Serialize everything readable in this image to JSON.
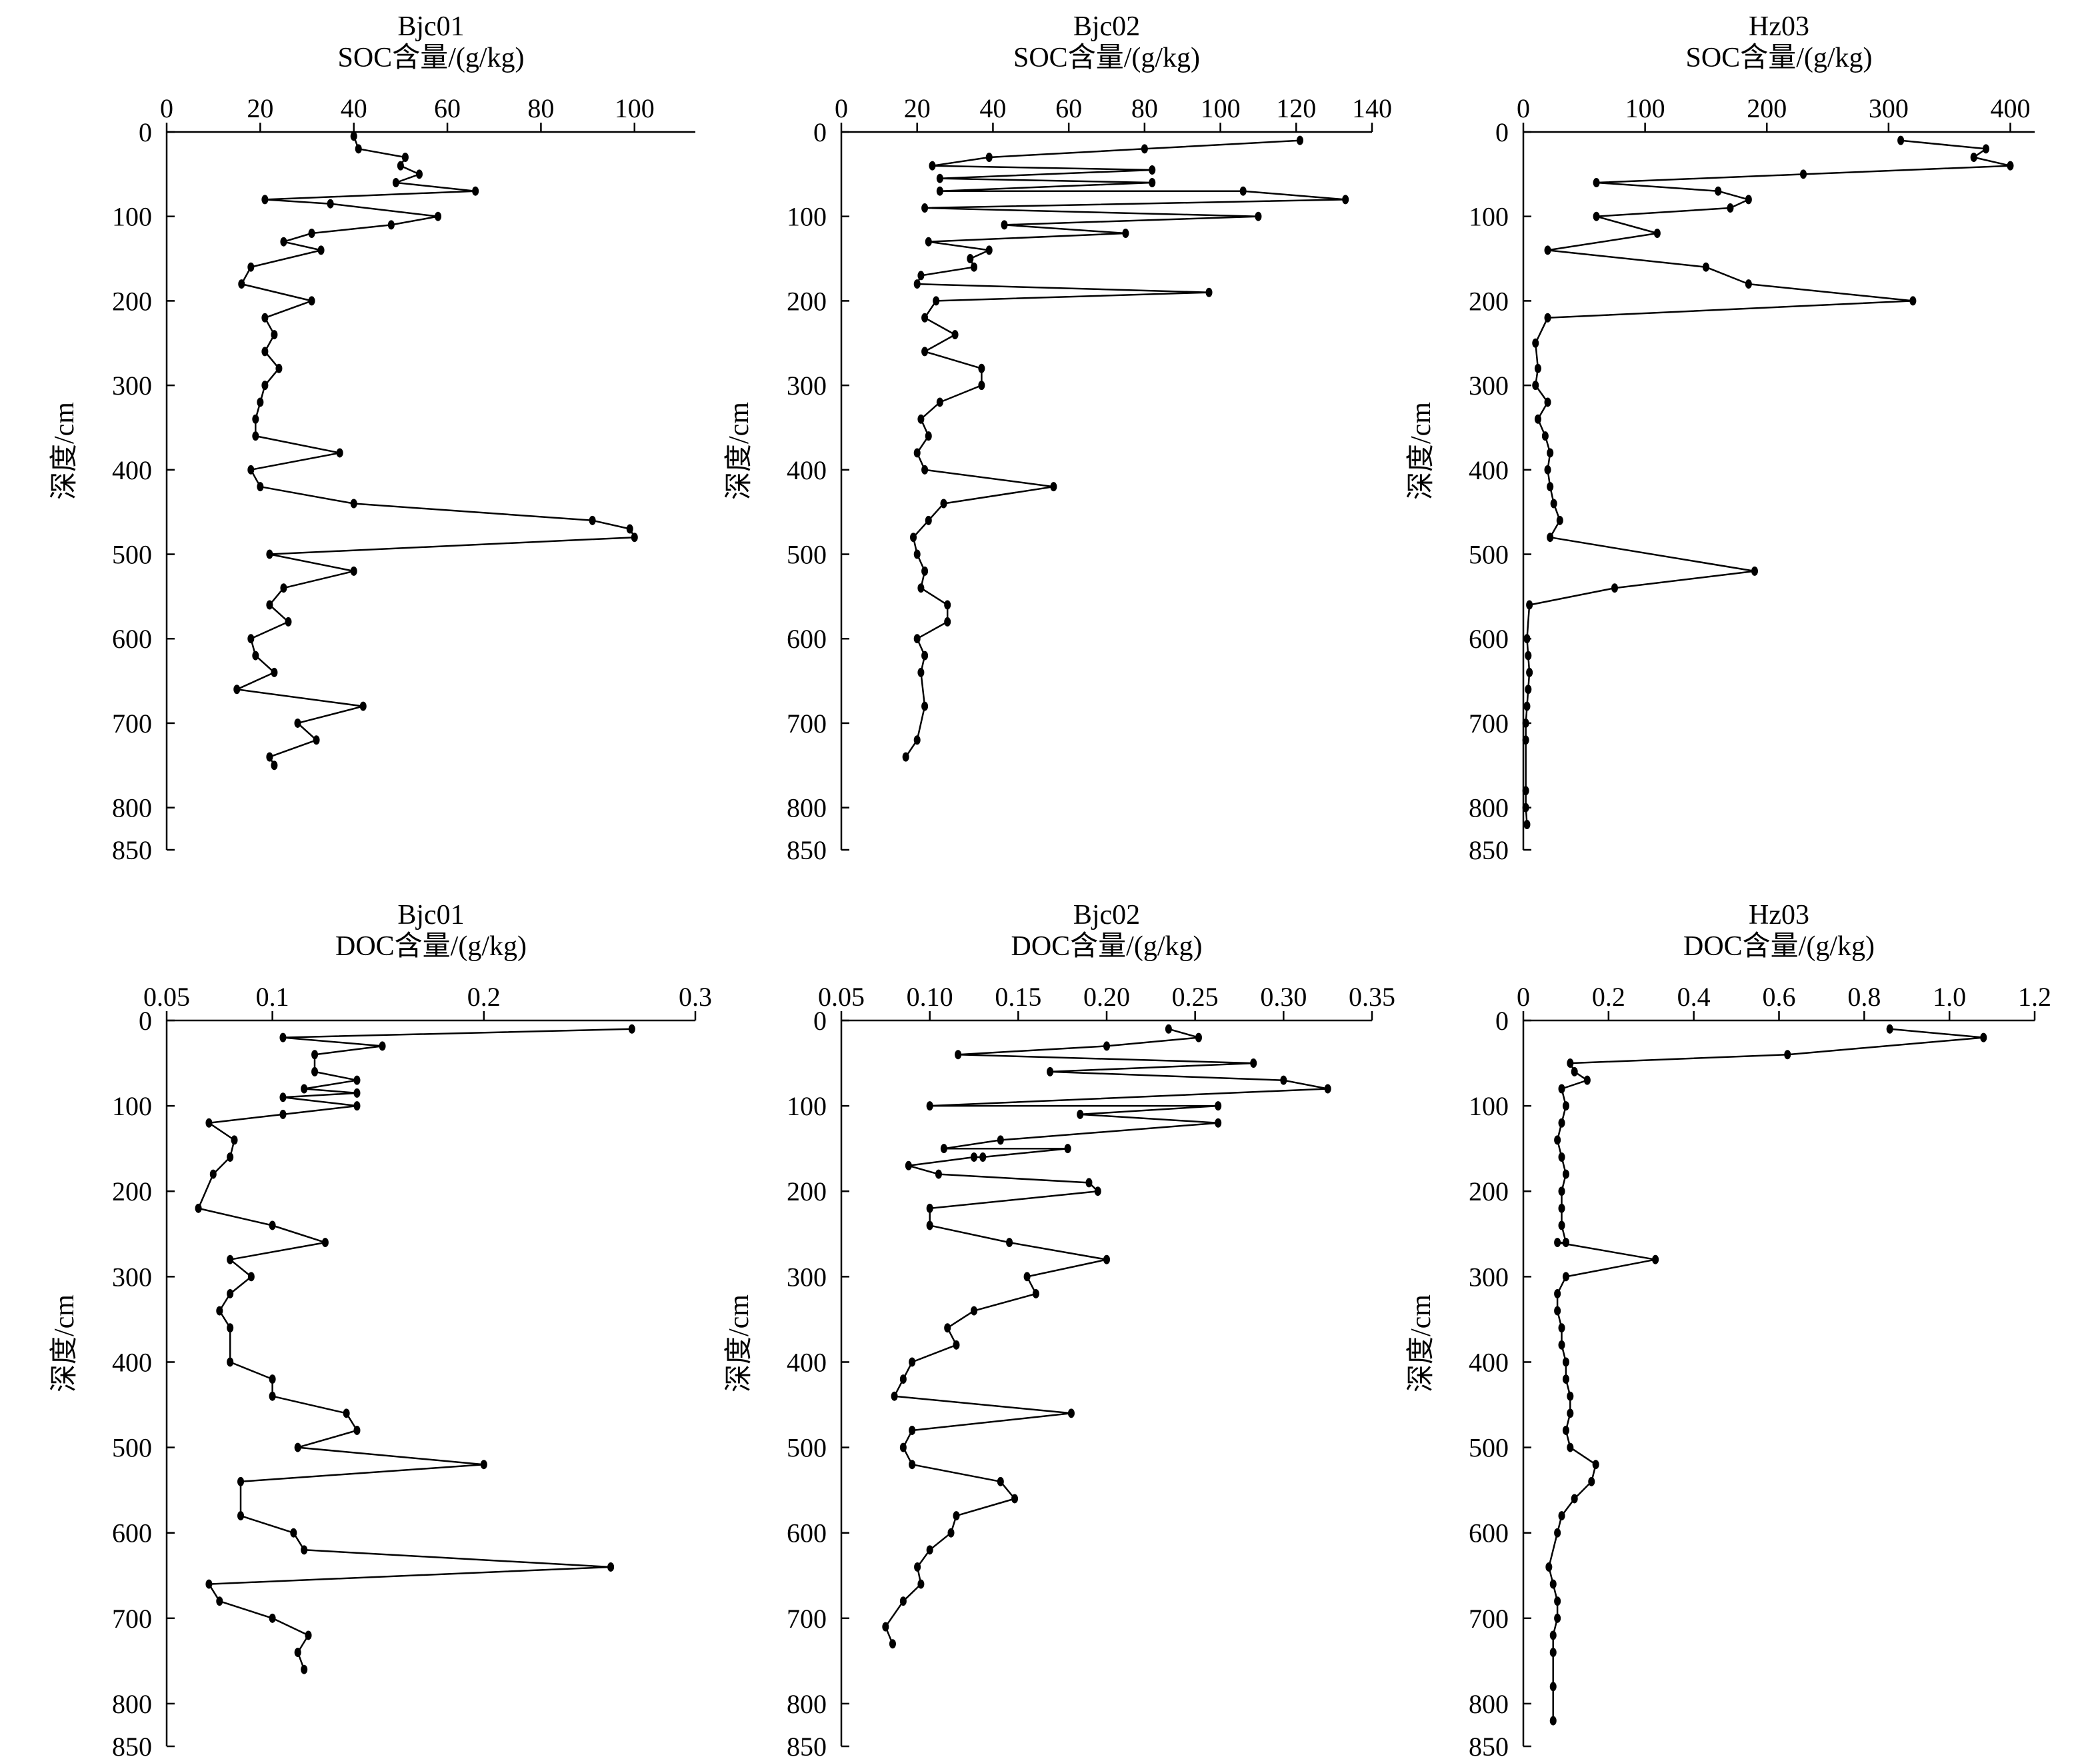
{
  "chart_data": [
    {
      "type": "line",
      "title": "Bjc01",
      "xlabel": "SOC含量/(g/kg)",
      "ylabel": "深度/cm",
      "xlim": [
        0,
        113
      ],
      "ylim": [
        850,
        0
      ],
      "x_ticks": [
        0,
        20,
        40,
        60,
        80,
        100
      ],
      "x_tick_labels": [
        "0",
        "20",
        "40",
        "60",
        "80",
        "100"
      ],
      "y_ticks": [
        0,
        100,
        200,
        300,
        400,
        500,
        600,
        700,
        800,
        850
      ],
      "y_tick_labels": [
        "0",
        "100",
        "200",
        "300",
        "400",
        "500",
        "600",
        "700",
        "800",
        "850"
      ],
      "grid": false,
      "series": [
        {
          "x": [
            40,
            41,
            51,
            50,
            54,
            49,
            66,
            21,
            35,
            58,
            48,
            31,
            25,
            33,
            18,
            16,
            31,
            21,
            23,
            21,
            24,
            21,
            20,
            19,
            19,
            37,
            18,
            20,
            40,
            91,
            99,
            100,
            22,
            40,
            25,
            22,
            26,
            18,
            19,
            23,
            15,
            42,
            28,
            32,
            22,
            23
          ],
          "y": [
            5,
            20,
            30,
            40,
            50,
            60,
            70,
            80,
            85,
            100,
            110,
            120,
            130,
            140,
            160,
            180,
            200,
            220,
            240,
            260,
            280,
            300,
            320,
            340,
            360,
            380,
            400,
            420,
            440,
            460,
            470,
            480,
            500,
            520,
            540,
            560,
            580,
            600,
            620,
            640,
            660,
            680,
            700,
            720,
            740,
            750
          ]
        }
      ]
    },
    {
      "type": "line",
      "title": "Bjc02",
      "xlabel": "SOC含量/(g/kg)",
      "ylabel": "深度/cm",
      "xlim": [
        0,
        140
      ],
      "ylim": [
        850,
        0
      ],
      "x_ticks": [
        0,
        20,
        40,
        60,
        80,
        100,
        120,
        140
      ],
      "x_tick_labels": [
        "0",
        "20",
        "40",
        "60",
        "80",
        "100",
        "120",
        "140"
      ],
      "y_ticks": [
        0,
        100,
        200,
        300,
        400,
        500,
        600,
        700,
        800,
        850
      ],
      "y_tick_labels": [
        "0",
        "100",
        "200",
        "300",
        "400",
        "500",
        "600",
        "700",
        "800",
        "850"
      ],
      "grid": false,
      "series": [
        {
          "x": [
            121,
            80,
            39,
            24,
            82,
            26,
            82,
            26,
            106,
            133,
            22,
            110,
            43,
            75,
            23,
            39,
            34,
            35,
            21,
            20,
            97,
            25,
            22,
            30,
            22,
            37,
            37,
            26,
            21,
            23,
            20,
            22,
            56,
            27,
            23,
            19,
            20,
            22,
            21,
            28,
            28,
            20,
            22,
            21,
            22,
            20,
            17
          ],
          "y": [
            10,
            20,
            30,
            40,
            45,
            55,
            60,
            70,
            70,
            80,
            90,
            100,
            110,
            120,
            130,
            140,
            150,
            160,
            170,
            180,
            190,
            200,
            220,
            240,
            260,
            280,
            300,
            320,
            340,
            360,
            380,
            400,
            420,
            440,
            460,
            480,
            500,
            520,
            540,
            560,
            580,
            600,
            620,
            640,
            680,
            720,
            740
          ]
        }
      ]
    },
    {
      "type": "line",
      "title": "Hz03",
      "xlabel": "SOC含量/(g/kg)",
      "ylabel": "深度/cm",
      "xlim": [
        0,
        420
      ],
      "ylim": [
        850,
        0
      ],
      "x_ticks": [
        0,
        100,
        200,
        300,
        400
      ],
      "x_tick_labels": [
        "0",
        "100",
        "200",
        "300",
        "400"
      ],
      "y_ticks": [
        0,
        100,
        200,
        300,
        400,
        500,
        600,
        700,
        800,
        850
      ],
      "y_tick_labels": [
        "0",
        "100",
        "200",
        "300",
        "400",
        "500",
        "600",
        "700",
        "800",
        "850"
      ],
      "grid": false,
      "series": [
        {
          "x": [
            310,
            380,
            370,
            400,
            230,
            60,
            160,
            185,
            170,
            60,
            110,
            20,
            150,
            185,
            320,
            20,
            10,
            12,
            10,
            20,
            12,
            18,
            22,
            20,
            22,
            25,
            30,
            22,
            190,
            75,
            5,
            3,
            4,
            5,
            4,
            3,
            2,
            2,
            2,
            2,
            3
          ],
          "y": [
            10,
            20,
            30,
            40,
            50,
            60,
            70,
            80,
            90,
            100,
            120,
            140,
            160,
            180,
            200,
            220,
            250,
            280,
            300,
            320,
            340,
            360,
            380,
            400,
            420,
            440,
            460,
            480,
            520,
            540,
            560,
            600,
            620,
            640,
            660,
            680,
            700,
            720,
            780,
            800,
            820
          ]
        }
      ]
    },
    {
      "type": "line",
      "title": "Bjc01",
      "xlabel": "DOC含量/(g/kg)",
      "ylabel": "深度/cm",
      "xlim": [
        0.05,
        0.3
      ],
      "ylim": [
        850,
        0
      ],
      "x_ticks": [
        0.05,
        0.1,
        0.2,
        0.3
      ],
      "x_tick_labels": [
        "0.05",
        "0.1",
        "0.2",
        "0.3"
      ],
      "y_ticks": [
        0,
        100,
        200,
        300,
        400,
        500,
        600,
        700,
        800,
        850
      ],
      "y_tick_labels": [
        "0",
        "100",
        "200",
        "300",
        "400",
        "500",
        "600",
        "700",
        "800",
        "850"
      ],
      "grid": false,
      "series": [
        {
          "x": [
            0.27,
            0.105,
            0.152,
            0.12,
            0.12,
            0.14,
            0.115,
            0.14,
            0.105,
            0.14,
            0.105,
            0.07,
            0.082,
            0.08,
            0.072,
            0.065,
            0.1,
            0.125,
            0.08,
            0.09,
            0.08,
            0.075,
            0.08,
            0.08,
            0.1,
            0.1,
            0.135,
            0.14,
            0.112,
            0.2,
            0.085,
            0.085,
            0.11,
            0.115,
            0.26,
            0.07,
            0.075,
            0.1,
            0.117,
            0.112,
            0.115
          ],
          "y": [
            10,
            20,
            30,
            40,
            60,
            70,
            80,
            85,
            90,
            100,
            110,
            120,
            140,
            160,
            180,
            220,
            240,
            260,
            280,
            300,
            320,
            340,
            360,
            400,
            420,
            440,
            460,
            480,
            500,
            520,
            540,
            580,
            600,
            620,
            640,
            660,
            680,
            700,
            720,
            740,
            760
          ]
        }
      ]
    },
    {
      "type": "line",
      "title": "Bjc02",
      "xlabel": "DOC含量/(g/kg)",
      "ylabel": "深度/cm",
      "xlim": [
        0.05,
        0.35
      ],
      "ylim": [
        850,
        0
      ],
      "x_ticks": [
        0.05,
        0.1,
        0.15,
        0.2,
        0.25,
        0.3,
        0.35
      ],
      "x_tick_labels": [
        "0.05",
        "0.10",
        "0.15",
        "0.20",
        "0.25",
        "0.30",
        "0.35"
      ],
      "y_ticks": [
        0,
        100,
        200,
        300,
        400,
        500,
        600,
        700,
        800,
        850
      ],
      "y_tick_labels": [
        "0",
        "100",
        "200",
        "300",
        "400",
        "500",
        "600",
        "700",
        "800",
        "850"
      ],
      "grid": false,
      "series": [
        {
          "x": [
            0.235,
            0.252,
            0.2,
            0.116,
            0.283,
            0.168,
            0.3,
            0.325,
            0.1,
            0.263,
            0.185,
            0.263,
            0.14,
            0.108,
            0.178,
            0.13,
            0.125,
            0.088,
            0.105,
            0.19,
            0.195,
            0.1,
            0.1,
            0.145,
            0.2,
            0.155,
            0.16,
            0.125,
            0.11,
            0.115,
            0.09,
            0.085,
            0.08,
            0.18,
            0.09,
            0.085,
            0.09,
            0.14,
            0.148,
            0.115,
            0.112,
            0.1,
            0.093,
            0.095,
            0.085,
            0.075,
            0.079
          ],
          "y": [
            10,
            20,
            30,
            40,
            50,
            60,
            70,
            80,
            100,
            100,
            110,
            120,
            140,
            150,
            150,
            160,
            160,
            170,
            180,
            190,
            200,
            220,
            240,
            260,
            280,
            300,
            320,
            340,
            360,
            380,
            400,
            420,
            440,
            460,
            480,
            500,
            520,
            540,
            560,
            580,
            600,
            620,
            640,
            660,
            680,
            710,
            730
          ]
        }
      ]
    },
    {
      "type": "line",
      "title": "Hz03",
      "xlabel": "DOC含量/(g/kg)",
      "ylabel": "深度/cm",
      "xlim": [
        0,
        1.2
      ],
      "ylim": [
        850,
        0
      ],
      "x_ticks": [
        0,
        0.2,
        0.4,
        0.6,
        0.8,
        1.0,
        1.2
      ],
      "x_tick_labels": [
        "0",
        "0.2",
        "0.4",
        "0.6",
        "0.8",
        "1.0",
        "1.2"
      ],
      "y_ticks": [
        0,
        100,
        200,
        300,
        400,
        500,
        600,
        700,
        800,
        850
      ],
      "y_tick_labels": [
        "0",
        "100",
        "200",
        "300",
        "400",
        "500",
        "600",
        "700",
        "800",
        "850"
      ],
      "grid": false,
      "series": [
        {
          "x": [
            0.86,
            1.08,
            0.62,
            0.11,
            0.12,
            0.15,
            0.09,
            0.1,
            0.09,
            0.08,
            0.09,
            0.1,
            0.09,
            0.09,
            0.09,
            0.1,
            0.1,
            0.08,
            0.31,
            0.1,
            0.08,
            0.08,
            0.09,
            0.09,
            0.1,
            0.1,
            0.11,
            0.11,
            0.1,
            0.11,
            0.17,
            0.16,
            0.12,
            0.09,
            0.08,
            0.06,
            0.07,
            0.08,
            0.08,
            0.07,
            0.07,
            0.07,
            0.07
          ],
          "y": [
            10,
            20,
            40,
            50,
            60,
            70,
            80,
            100,
            120,
            140,
            160,
            180,
            200,
            220,
            240,
            260,
            260,
            260,
            280,
            300,
            320,
            340,
            360,
            380,
            400,
            420,
            440,
            460,
            480,
            500,
            520,
            540,
            560,
            580,
            600,
            640,
            660,
            680,
            700,
            720,
            740,
            780,
            820
          ]
        }
      ]
    }
  ]
}
